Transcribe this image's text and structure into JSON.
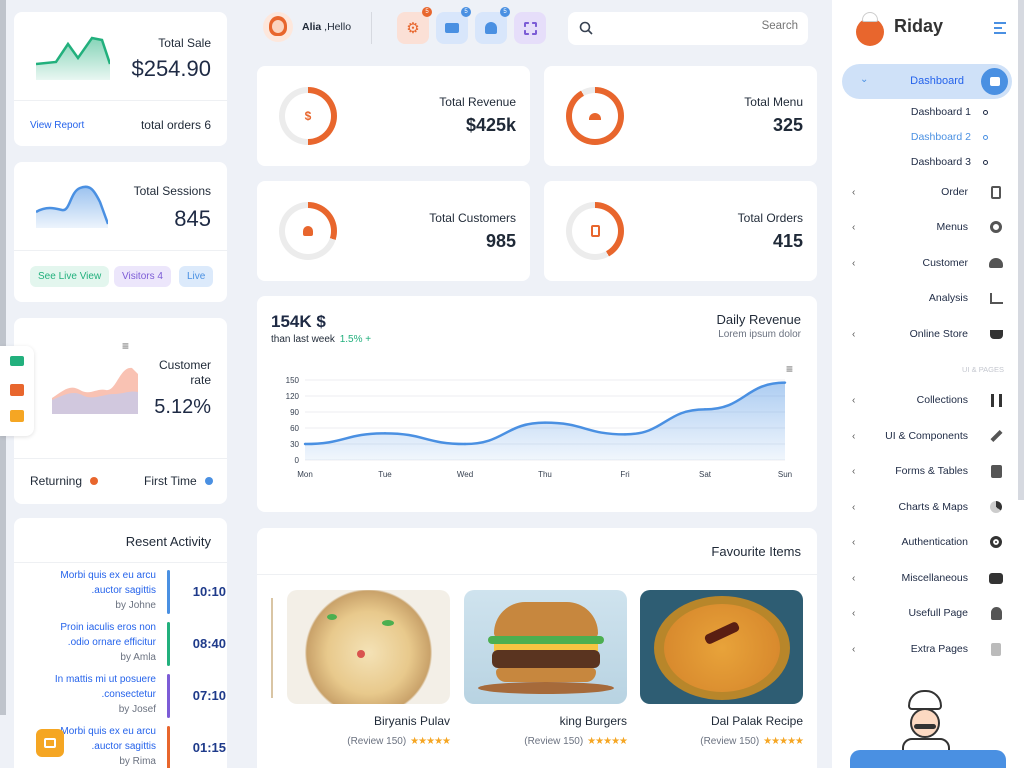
{
  "colors": {
    "accent": "#e8662d",
    "primary": "#4a90e2",
    "bg": "#eef1f7"
  },
  "left": {
    "sale": {
      "label": "Total Sale",
      "value": "$254.90",
      "link": "View Report",
      "orders": "total orders 6"
    },
    "sessions": {
      "label": "Total Sessions",
      "value": "845",
      "buttons": [
        "See Live View",
        "Visitors 4",
        "Live"
      ]
    },
    "customer_rate": {
      "label_line1": "Customer",
      "label_line2": "rate",
      "value": "5.12%",
      "legend": [
        "Returning",
        "First Time"
      ]
    },
    "activity": {
      "title": "Resent Activity",
      "items": [
        {
          "line1": "Morbi quis ex eu arcu",
          "line2": ".auctor sagittis",
          "by": "by Johne",
          "time": "10:10",
          "color": "#4a90e2"
        },
        {
          "line1": "Proin iaculis eros non",
          "line2": ".odio ornare efficitur",
          "by": "by Amla",
          "time": "08:40",
          "color": "#22b07d"
        },
        {
          "line1": "In mattis mi ut posuere",
          "line2": ".consectetur",
          "by": "by Josef",
          "time": "07:10",
          "color": "#7c5cd6"
        },
        {
          "line1": "Morbi quis ex eu arcu",
          "line2": ".auctor sagittis",
          "by": "by Rima",
          "time": "01:15",
          "color": "#e8662d"
        }
      ]
    }
  },
  "header": {
    "greeting_name": "Alia",
    "greeting_text": " ,Hello",
    "search_placeholder": "Search",
    "badges": [
      "5",
      "5",
      "5"
    ]
  },
  "stats": [
    {
      "label": "Total Revenue",
      "value": "$425k",
      "icon": "$"
    },
    {
      "label": "Total Menu",
      "value": "325"
    },
    {
      "label": "Total Customers",
      "value": "985"
    },
    {
      "label": "Total Orders",
      "value": "415"
    }
  ],
  "revenue": {
    "big": "154K $",
    "sub": "than last week",
    "delta": "1.5% +",
    "title": "Daily Revenue",
    "subtitle": "Lorem ipsum dolor"
  },
  "chart_data": {
    "type": "area",
    "categories": [
      "Mon",
      "Tue",
      "Wed",
      "Thu",
      "Fri",
      "Sat",
      "Sun"
    ],
    "series": [
      {
        "values": [
          30,
          50,
          30,
          70,
          48,
          95,
          145
        ]
      }
    ],
    "yticks": [
      0,
      30,
      60,
      90,
      120,
      150
    ],
    "ylim": [
      0,
      150
    ],
    "grid": true
  },
  "favourites": {
    "title": "Favourite Items",
    "items": [
      {
        "name": "Biryanis Pulav",
        "review": "(Review 150)"
      },
      {
        "name": "king Burgers",
        "review": "(Review 150)"
      },
      {
        "name": "Dal Palak Recipe",
        "review": "(Review 150)"
      }
    ]
  },
  "sidebar": {
    "brand": "Riday",
    "dashboard": "Dashboard",
    "subitems": [
      "Dashboard 1",
      "Dashboard 2",
      "Dashboard 3"
    ],
    "items": [
      "Order",
      "Menus",
      "Customer",
      "Analysis",
      "Online Store"
    ],
    "section": "UI & PAGES",
    "items2": [
      "Collections",
      "UI & Components",
      "Forms & Tables",
      "Charts & Maps",
      "Authentication",
      "Miscellaneous",
      "Usefull Page",
      "Extra Pages"
    ]
  }
}
